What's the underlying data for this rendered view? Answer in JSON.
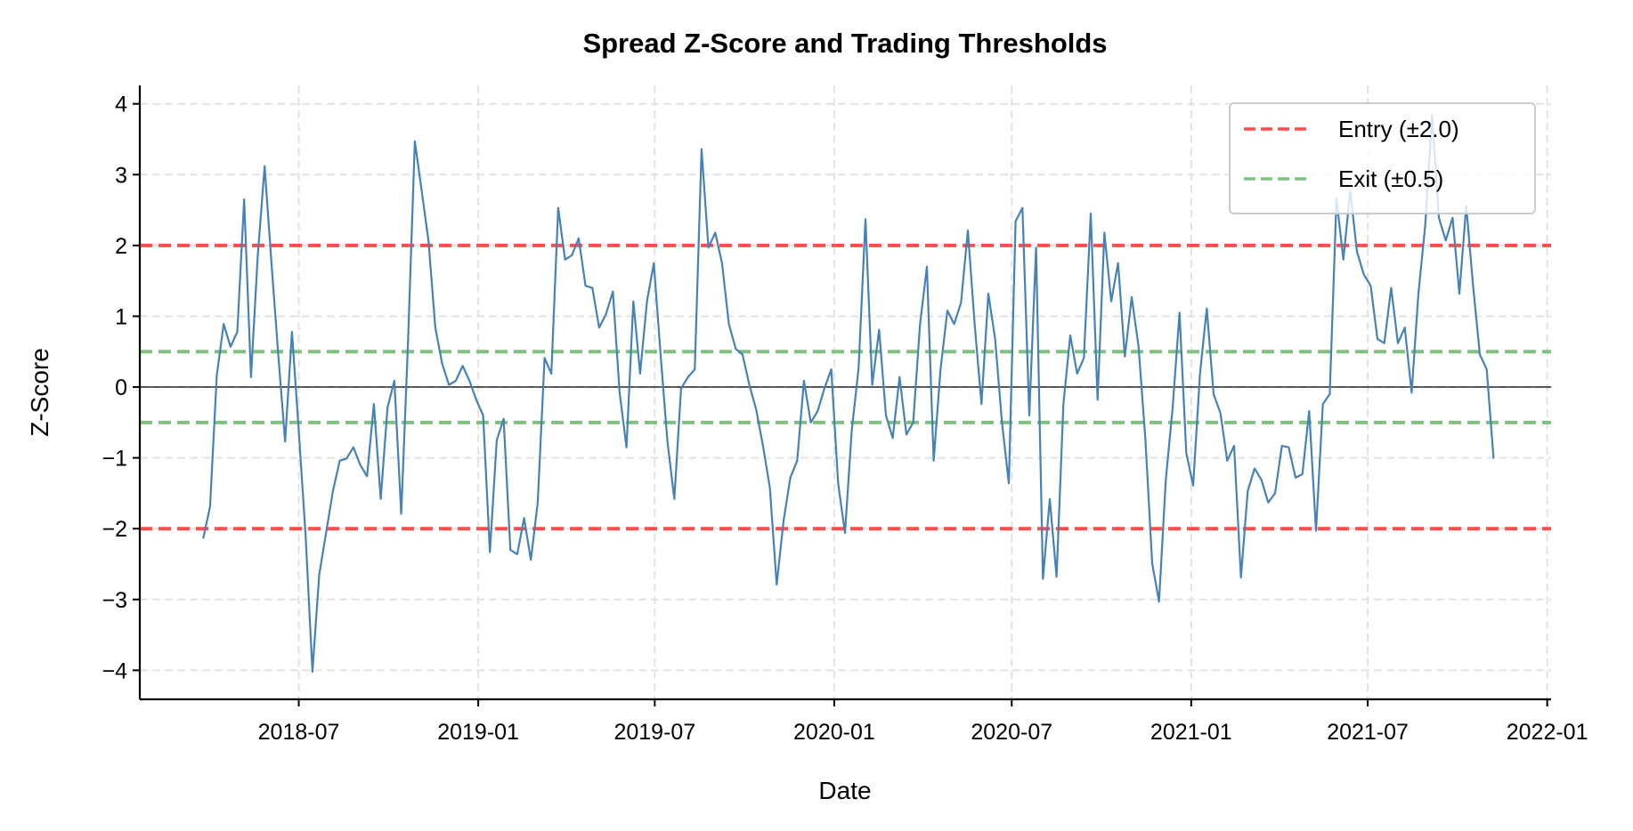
{
  "chart_data": {
    "type": "line",
    "title": "Spread Z-Score and Trading Thresholds",
    "xlabel": "Date",
    "ylabel": "Z-Score",
    "xlim": [
      "2018-01-19",
      "2022-01-05"
    ],
    "ylim": [
      -4.41,
      4.26
    ],
    "grid": true,
    "legend_position": "top-right",
    "x_ticks": [
      "2018-07",
      "2019-01",
      "2019-07",
      "2020-01",
      "2020-07",
      "2021-01",
      "2021-07",
      "2022-01"
    ],
    "y_ticks": [
      4,
      3,
      2,
      1,
      0,
      -1,
      -2,
      -3,
      -4
    ],
    "y_tick_labels": [
      "4",
      "3",
      "2",
      "1",
      "0",
      "−1",
      "−2",
      "−3",
      "−4"
    ],
    "series": [
      {
        "color": "#4682b4",
        "x": [
          "2018-03-25",
          "2018-04-01",
          "2018-04-08",
          "2018-04-15",
          "2018-04-22",
          "2018-04-29",
          "2018-05-06",
          "2018-05-13",
          "2018-05-20",
          "2018-05-27",
          "2018-06-03",
          "2018-06-10",
          "2018-06-17",
          "2018-06-24",
          "2018-07-01",
          "2018-07-08",
          "2018-07-15",
          "2018-07-22",
          "2018-07-29",
          "2018-08-05",
          "2018-08-12",
          "2018-08-19",
          "2018-08-26",
          "2018-09-02",
          "2018-09-09",
          "2018-09-16",
          "2018-09-23",
          "2018-09-30",
          "2018-10-07",
          "2018-10-14",
          "2018-10-21",
          "2018-10-28",
          "2018-11-04",
          "2018-11-11",
          "2018-11-18",
          "2018-11-25",
          "2018-12-02",
          "2018-12-09",
          "2018-12-16",
          "2018-12-23",
          "2018-12-30",
          "2019-01-06",
          "2019-01-13",
          "2019-01-20",
          "2019-01-27",
          "2019-02-03",
          "2019-02-10",
          "2019-02-17",
          "2019-02-24",
          "2019-03-03",
          "2019-03-10",
          "2019-03-17",
          "2019-03-24",
          "2019-03-31",
          "2019-04-07",
          "2019-04-14",
          "2019-04-21",
          "2019-04-28",
          "2019-05-05",
          "2019-05-12",
          "2019-05-19",
          "2019-05-26",
          "2019-06-02",
          "2019-06-09",
          "2019-06-16",
          "2019-06-23",
          "2019-06-30",
          "2019-07-07",
          "2019-07-14",
          "2019-07-21",
          "2019-07-28",
          "2019-08-04",
          "2019-08-11",
          "2019-08-18",
          "2019-08-25",
          "2019-09-01",
          "2019-09-08",
          "2019-09-15",
          "2019-09-22",
          "2019-09-29",
          "2019-10-06",
          "2019-10-13",
          "2019-10-20",
          "2019-10-27",
          "2019-11-03",
          "2019-11-10",
          "2019-11-17",
          "2019-11-24",
          "2019-12-01",
          "2019-12-08",
          "2019-12-15",
          "2019-12-22",
          "2019-12-29",
          "2020-01-05",
          "2020-01-12",
          "2020-01-19",
          "2020-01-26",
          "2020-02-02",
          "2020-02-09",
          "2020-02-16",
          "2020-02-23",
          "2020-03-01",
          "2020-03-08",
          "2020-03-15",
          "2020-03-22",
          "2020-03-29",
          "2020-04-05",
          "2020-04-12",
          "2020-04-19",
          "2020-04-26",
          "2020-05-03",
          "2020-05-10",
          "2020-05-17",
          "2020-05-24",
          "2020-05-31",
          "2020-06-07",
          "2020-06-14",
          "2020-06-21",
          "2020-06-28",
          "2020-07-05",
          "2020-07-12",
          "2020-07-19",
          "2020-07-26",
          "2020-08-02",
          "2020-08-09",
          "2020-08-16",
          "2020-08-23",
          "2020-08-30",
          "2020-09-06",
          "2020-09-13",
          "2020-09-20",
          "2020-09-27",
          "2020-10-04",
          "2020-10-11",
          "2020-10-18",
          "2020-10-25",
          "2020-11-01",
          "2020-11-08",
          "2020-11-15",
          "2020-11-22",
          "2020-11-29",
          "2020-12-06",
          "2020-12-13",
          "2020-12-20",
          "2020-12-27",
          "2021-01-03",
          "2021-01-10",
          "2021-01-17",
          "2021-01-24",
          "2021-01-31",
          "2021-02-07",
          "2021-02-14",
          "2021-02-21",
          "2021-02-28",
          "2021-03-07",
          "2021-03-14",
          "2021-03-21",
          "2021-03-28",
          "2021-04-04",
          "2021-04-11",
          "2021-04-18",
          "2021-04-25",
          "2021-05-02",
          "2021-05-09",
          "2021-05-16",
          "2021-05-23",
          "2021-05-30",
          "2021-06-06",
          "2021-06-13",
          "2021-06-20",
          "2021-06-27",
          "2021-07-04",
          "2021-07-11",
          "2021-07-18",
          "2021-07-25",
          "2021-08-01",
          "2021-08-08",
          "2021-08-15",
          "2021-08-22",
          "2021-08-29",
          "2021-09-05",
          "2021-09-12",
          "2021-09-19",
          "2021-09-26",
          "2021-10-03",
          "2021-10-10",
          "2021-10-17",
          "2021-10-24",
          "2021-10-31",
          "2021-11-07"
        ],
        "y": [
          -2.14,
          -1.69,
          0.17,
          0.89,
          0.57,
          0.78,
          2.65,
          0.14,
          1.86,
          3.12,
          1.75,
          0.46,
          -0.77,
          0.78,
          -0.61,
          -2.09,
          -4.02,
          -2.65,
          -2.06,
          -1.47,
          -1.04,
          -1.01,
          -0.85,
          -1.1,
          -1.26,
          -0.24,
          -1.58,
          -0.29,
          0.09,
          -1.79,
          0.62,
          3.47,
          2.77,
          2.07,
          0.84,
          0.33,
          0.03,
          0.09,
          0.3,
          0.09,
          -0.18,
          -0.4,
          -2.33,
          -0.75,
          -0.45,
          -2.3,
          -2.36,
          -1.85,
          -2.44,
          -1.63,
          0.41,
          0.19,
          2.53,
          1.8,
          1.86,
          2.1,
          1.43,
          1.4,
          0.84,
          1.03,
          1.35,
          -0.08,
          -0.85,
          1.21,
          0.19,
          1.21,
          1.75,
          0.46,
          -0.77,
          -1.58,
          -0.02,
          0.14,
          0.25,
          3.36,
          1.97,
          2.18,
          1.75,
          0.89,
          0.54,
          0.46,
          0.03,
          -0.32,
          -0.83,
          -1.42,
          -2.79,
          -1.9,
          -1.28,
          -1.04,
          0.09,
          -0.5,
          -0.34,
          -0.02,
          0.25,
          -1.36,
          -2.06,
          -0.61,
          0.27,
          2.37,
          0.03,
          0.81,
          -0.4,
          -0.72,
          0.14,
          -0.67,
          -0.5,
          0.89,
          1.7,
          -1.04,
          0.25,
          1.08,
          0.89,
          1.19,
          2.21,
          0.89,
          -0.24,
          1.32,
          0.68,
          -0.5,
          -1.36,
          2.34,
          2.53,
          -0.4,
          1.97,
          -2.71,
          -1.58,
          -2.68,
          -0.24,
          0.73,
          0.19,
          0.41,
          2.45,
          -0.18,
          2.18,
          1.21,
          1.75,
          0.43,
          1.27,
          0.57,
          -0.72,
          -2.49,
          -3.03,
          -1.31,
          -0.29,
          1.05,
          -0.93,
          -1.39,
          0.19,
          1.11,
          -0.1,
          -0.37,
          -1.04,
          -0.83,
          -2.69,
          -1.47,
          -1.15,
          -1.31,
          -1.63,
          -1.5,
          -0.83,
          -0.85,
          -1.28,
          -1.23,
          -0.34,
          -2.03,
          -0.24,
          -0.1,
          2.66,
          1.8,
          2.77,
          1.91,
          1.59,
          1.43,
          0.68,
          0.62,
          1.4,
          0.62,
          0.84,
          -0.08,
          1.32,
          2.29,
          3.84,
          2.39,
          2.07,
          2.39,
          1.32,
          2.56,
          1.43,
          0.46,
          0.25,
          -1.01
        ]
      }
    ],
    "hlines": [
      {
        "y": 2.0,
        "color": "#ff4d4d",
        "style": "dashed",
        "legend": "Entry (±2.0)"
      },
      {
        "y": -2.0,
        "color": "#ff4d4d",
        "style": "dashed"
      },
      {
        "y": 0.5,
        "color": "#80c080",
        "style": "dashed",
        "legend": "Exit (±0.5)"
      },
      {
        "y": -0.5,
        "color": "#80c080",
        "style": "dashed"
      },
      {
        "y": 0,
        "color": "#000000",
        "style": "solid"
      }
    ],
    "legend": [
      {
        "label": "Entry (±2.0)",
        "color": "#ff4d4d"
      },
      {
        "label": "Exit (±0.5)",
        "color": "#80c080"
      }
    ]
  }
}
